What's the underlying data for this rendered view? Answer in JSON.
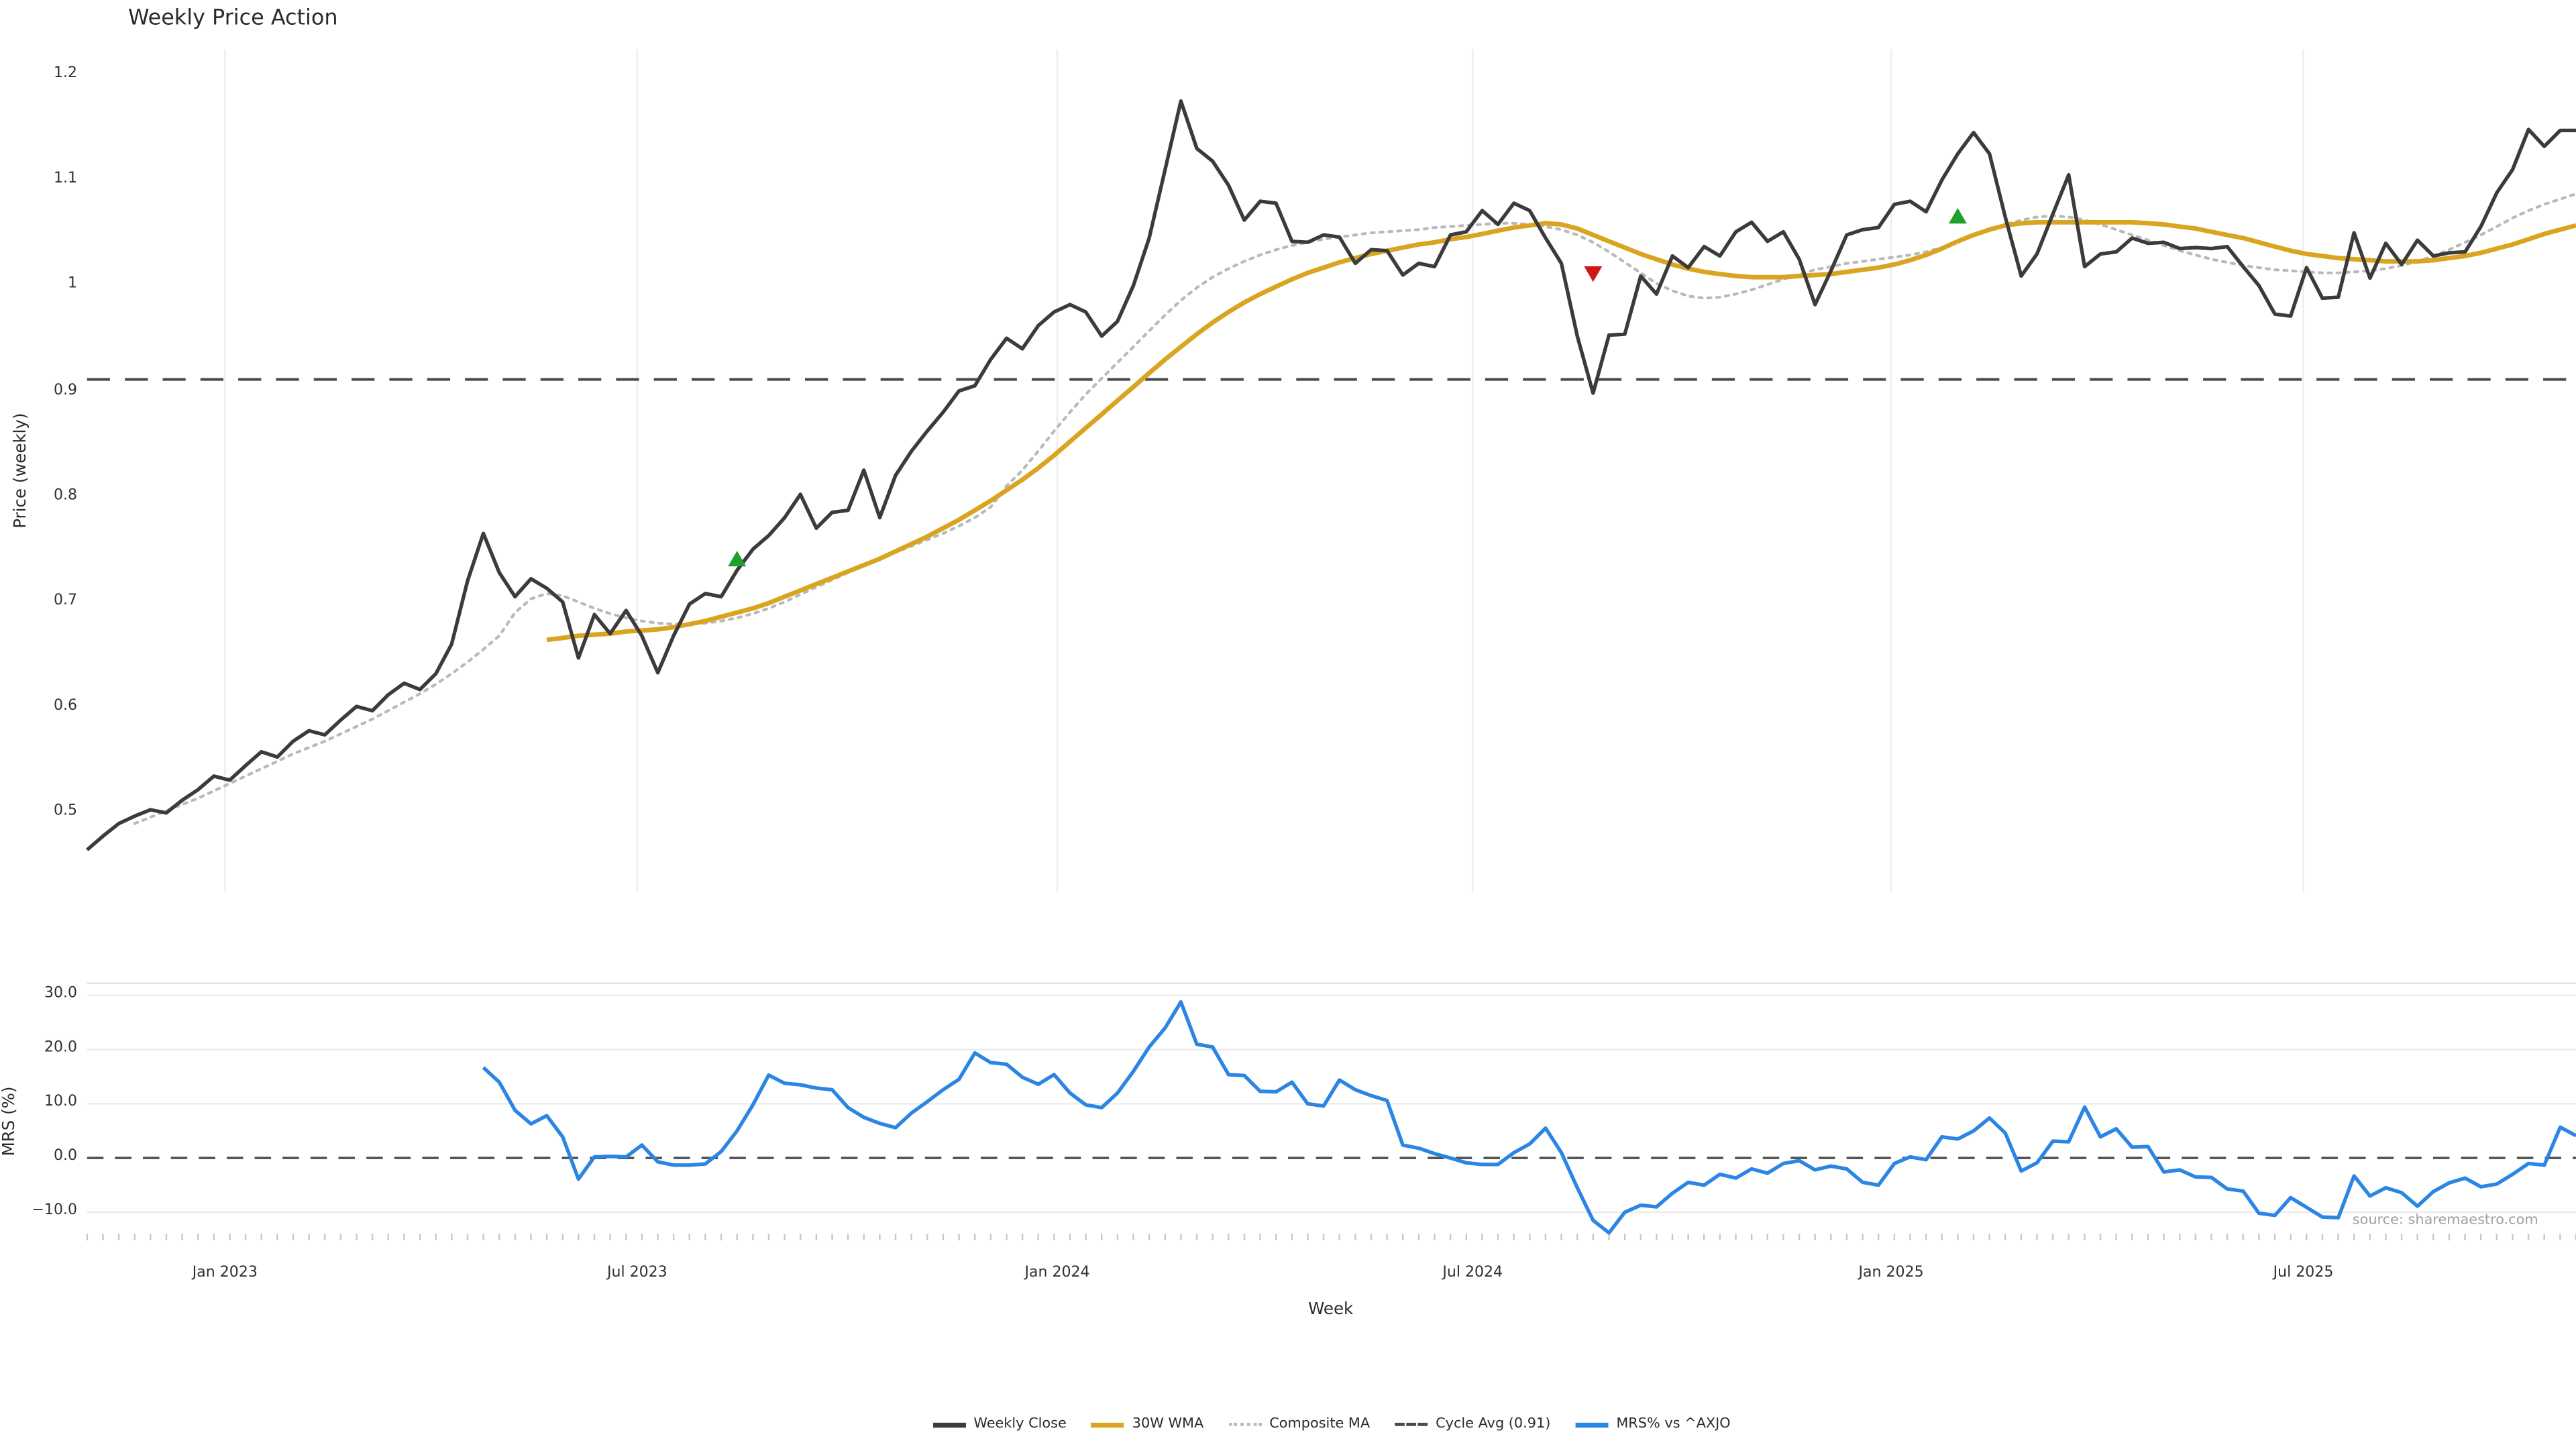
{
  "title": "Weekly Price Action",
  "source": "source: sharemaestro.com",
  "colors": {
    "weekly_close": "#3b3b3b",
    "wma_30w": "#d9a520",
    "composite_ma": "#b9b9b9",
    "cycle_avg": "#4a4a4a",
    "mrs_line": "#2b85e4",
    "buy_marker": "#1da02c",
    "sell_marker": "#cf1717",
    "grid": "#ededed",
    "tick_text": "#303030"
  },
  "x_axis": {
    "label": "Week",
    "ticks": [
      {
        "pos": 8.7,
        "label": "Jan 2023"
      },
      {
        "pos": 34.7,
        "label": "Jul 2023"
      },
      {
        "pos": 61.2,
        "label": "Jan 2024"
      },
      {
        "pos": 87.4,
        "label": "Jul 2024"
      },
      {
        "pos": 113.8,
        "label": "Jan 2025"
      },
      {
        "pos": 139.8,
        "label": "Jul 2025"
      }
    ],
    "weeks_total": 157
  },
  "legend": {
    "items": [
      {
        "label": "Weekly Close",
        "color": "#3b3b3b",
        "style": "solid",
        "thick": 3
      },
      {
        "label": "30W WMA",
        "color": "#d9a520",
        "style": "solid",
        "thick": 3
      },
      {
        "label": "Composite MA",
        "color": "#b9b9b9",
        "style": "dotted",
        "thick": 2
      },
      {
        "label": "Cycle Avg (0.91)",
        "color": "#4a4a4a",
        "style": "dashed",
        "thick": 2
      },
      {
        "label": "MRS% vs ^AXJO",
        "color": "#2b85e4",
        "style": "solid",
        "thick": 3
      }
    ]
  },
  "chart_data": [
    {
      "id": "price",
      "type": "line",
      "title": "Weekly Price Action",
      "xlabel": "Week",
      "ylabel": "Price (weekly)",
      "ylim": [
        0.425,
        1.224
      ],
      "grid_x": true,
      "yticks": [
        {
          "v": 1.2,
          "label": "1.2"
        },
        {
          "v": 1.1,
          "label": "1.1"
        },
        {
          "v": 1.0,
          "label": "1"
        },
        {
          "v": 0.9,
          "label": "0.9"
        },
        {
          "v": 0.8,
          "label": "0.8"
        },
        {
          "v": 0.7,
          "label": "0.7"
        },
        {
          "v": 0.6,
          "label": "0.6"
        },
        {
          "v": 0.5,
          "label": "0.5"
        }
      ],
      "hline": {
        "value": 0.911,
        "label": "Cycle Avg (0.91)",
        "style": "dashed",
        "color": "#4a4a4a"
      },
      "markers": [
        {
          "week": 41,
          "price": 0.74,
          "dir": "up",
          "type": "buy-signal",
          "color": "#1da02c"
        },
        {
          "week": 95,
          "price": 1.012,
          "dir": "down",
          "type": "sell-signal",
          "color": "#cf1717"
        },
        {
          "week": 118,
          "price": 1.065,
          "dir": "up",
          "type": "buy-signal",
          "color": "#1da02c"
        }
      ],
      "series": [
        {
          "name": "Weekly Close",
          "color": "#3b3b3b",
          "width": 2.2,
          "dash": null,
          "start_week": 0,
          "values": [
            0.465,
            0.478,
            0.49,
            0.497,
            0.503,
            0.5,
            0.512,
            0.522,
            0.535,
            0.531,
            0.545,
            0.558,
            0.553,
            0.568,
            0.578,
            0.574,
            0.588,
            0.601,
            0.597,
            0.612,
            0.623,
            0.617,
            0.632,
            0.66,
            0.72,
            0.765,
            0.728,
            0.705,
            0.722,
            0.713,
            0.7,
            0.647,
            0.688,
            0.67,
            0.692,
            0.668,
            0.633,
            0.668,
            0.698,
            0.708,
            0.705,
            0.73,
            0.75,
            0.763,
            0.78,
            0.802,
            0.77,
            0.785,
            0.787,
            0.825,
            0.78,
            0.82,
            0.843,
            0.862,
            0.88,
            0.9,
            0.905,
            0.93,
            0.95,
            0.94,
            0.962,
            0.975,
            0.982,
            0.975,
            0.952,
            0.966,
            1.0,
            1.045,
            1.11,
            1.175,
            1.13,
            1.118,
            1.095,
            1.062,
            1.08,
            1.078,
            1.042,
            1.041,
            1.048,
            1.046,
            1.021,
            1.034,
            1.033,
            1.01,
            1.021,
            1.018,
            1.048,
            1.051,
            1.071,
            1.058,
            1.078,
            1.071,
            1.045,
            1.021,
            0.952,
            0.898,
            0.953,
            0.954,
            1.009,
            0.992,
            1.028,
            1.017,
            1.037,
            1.028,
            1.051,
            1.06,
            1.042,
            1.051,
            1.025,
            0.982,
            1.014,
            1.048,
            1.053,
            1.055,
            1.077,
            1.08,
            1.07,
            1.1,
            1.125,
            1.145,
            1.125,
            1.065,
            1.009,
            1.03,
            1.068,
            1.105,
            1.018,
            1.03,
            1.032,
            1.045,
            1.04,
            1.041,
            1.035,
            1.036,
            1.035,
            1.037,
            1.018,
            1.0,
            0.973,
            0.971,
            1.017,
            0.988,
            0.989,
            1.05,
            1.007,
            1.04,
            1.02,
            1.043,
            1.028,
            1.031,
            1.032,
            1.056,
            1.088,
            1.11,
            1.148,
            1.132,
            1.147,
            1.147
          ]
        },
        {
          "name": "30W WMA",
          "color": "#d9a520",
          "width": 2.8,
          "dash": null,
          "start_week": 29,
          "values": [
            0.664,
            0.666,
            0.668,
            0.669,
            0.67,
            0.672,
            0.673,
            0.674,
            0.676,
            0.679,
            0.682,
            0.686,
            0.69,
            0.694,
            0.699,
            0.705,
            0.711,
            0.717,
            0.723,
            0.729,
            0.735,
            0.741,
            0.748,
            0.755,
            0.762,
            0.77,
            0.778,
            0.787,
            0.796,
            0.806,
            0.816,
            0.827,
            0.839,
            0.852,
            0.865,
            0.878,
            0.891,
            0.904,
            0.917,
            0.93,
            0.942,
            0.954,
            0.965,
            0.975,
            0.984,
            0.992,
            0.999,
            1.006,
            1.012,
            1.017,
            1.022,
            1.026,
            1.03,
            1.033,
            1.036,
            1.039,
            1.041,
            1.044,
            1.046,
            1.049,
            1.052,
            1.055,
            1.057,
            1.059,
            1.058,
            1.054,
            1.048,
            1.042,
            1.036,
            1.03,
            1.025,
            1.02,
            1.016,
            1.013,
            1.011,
            1.009,
            1.008,
            1.008,
            1.008,
            1.009,
            1.01,
            1.011,
            1.013,
            1.015,
            1.017,
            1.02,
            1.024,
            1.029,
            1.035,
            1.042,
            1.048,
            1.053,
            1.057,
            1.059,
            1.06,
            1.06,
            1.06,
            1.06,
            1.06,
            1.06,
            1.06,
            1.059,
            1.058,
            1.056,
            1.054,
            1.051,
            1.048,
            1.045,
            1.041,
            1.037,
            1.033,
            1.03,
            1.028,
            1.026,
            1.025,
            1.024,
            1.023,
            1.023,
            1.023,
            1.024,
            1.026,
            1.028,
            1.031,
            1.035,
            1.039,
            1.044,
            1.049,
            1.053,
            1.057
          ]
        },
        {
          "name": "Composite MA",
          "color": "#b9b9b9",
          "width": 1.7,
          "dash": "2 3.4",
          "start_week": 3,
          "values": [
            0.49,
            0.496,
            0.502,
            0.508,
            0.514,
            0.521,
            0.528,
            0.535,
            0.542,
            0.549,
            0.556,
            0.562,
            0.568,
            0.575,
            0.582,
            0.589,
            0.597,
            0.605,
            0.613,
            0.622,
            0.632,
            0.643,
            0.655,
            0.668,
            0.69,
            0.703,
            0.708,
            0.706,
            0.7,
            0.694,
            0.689,
            0.685,
            0.682,
            0.68,
            0.679,
            0.679,
            0.68,
            0.682,
            0.685,
            0.689,
            0.694,
            0.7,
            0.707,
            0.714,
            0.721,
            0.728,
            0.735,
            0.741,
            0.747,
            0.753,
            0.759,
            0.765,
            0.772,
            0.78,
            0.79,
            0.81,
            0.825,
            0.843,
            0.862,
            0.88,
            0.897,
            0.912,
            0.927,
            0.942,
            0.957,
            0.972,
            0.986,
            0.998,
            1.008,
            1.016,
            1.023,
            1.029,
            1.034,
            1.038,
            1.041,
            1.044,
            1.046,
            1.048,
            1.05,
            1.051,
            1.052,
            1.053,
            1.055,
            1.056,
            1.057,
            1.058,
            1.059,
            1.059,
            1.058,
            1.056,
            1.053,
            1.048,
            1.041,
            1.032,
            1.022,
            1.012,
            1.002,
            0.995,
            0.99,
            0.988,
            0.989,
            0.992,
            0.996,
            1.001,
            1.006,
            1.011,
            1.015,
            1.018,
            1.021,
            1.023,
            1.025,
            1.027,
            1.029,
            1.032,
            1.036,
            1.041,
            1.047,
            1.053,
            1.058,
            1.062,
            1.065,
            1.066,
            1.065,
            1.062,
            1.058,
            1.053,
            1.048,
            1.043,
            1.038,
            1.033,
            1.029,
            1.025,
            1.022,
            1.019,
            1.017,
            1.015,
            1.014,
            1.013,
            1.012,
            1.012,
            1.013,
            1.014,
            1.016,
            1.019,
            1.023,
            1.028,
            1.034,
            1.041,
            1.048,
            1.056,
            1.064,
            1.071,
            1.077,
            1.082,
            1.087
          ]
        }
      ]
    },
    {
      "id": "mrs",
      "type": "line",
      "ylabel": "MRS (%)",
      "ylim": [
        -15.5,
        32.4
      ],
      "grid_y": true,
      "yticks": [
        {
          "v": 30,
          "label": "30.0"
        },
        {
          "v": 20,
          "label": "20.0"
        },
        {
          "v": 10,
          "label": "10.0"
        },
        {
          "v": 0,
          "label": "0.0"
        },
        {
          "v": -10,
          "label": "−10.0"
        }
      ],
      "hline": {
        "value": 0.0,
        "style": "dashed",
        "color": "#555555"
      },
      "series": [
        {
          "name": "MRS% vs ^AXJO",
          "color": "#2b85e4",
          "width": 2.2,
          "dash": null,
          "start_week": 25,
          "values": [
            16.7,
            14.0,
            8.8,
            6.3,
            7.8,
            3.9,
            -3.9,
            0.2,
            0.3,
            0.2,
            2.4,
            -0.7,
            -1.3,
            -1.3,
            -1.1,
            1.2,
            5.0,
            9.8,
            15.3,
            13.8,
            13.5,
            12.9,
            12.6,
            9.3,
            7.5,
            6.4,
            5.6,
            8.3,
            10.4,
            12.6,
            14.5,
            19.4,
            17.6,
            17.3,
            14.9,
            13.6,
            15.4,
            12.0,
            9.8,
            9.3,
            12.0,
            16.0,
            20.5,
            24.0,
            28.8,
            21.0,
            20.5,
            15.4,
            15.2,
            12.3,
            12.2,
            14.0,
            10.0,
            9.6,
            14.4,
            12.6,
            11.5,
            10.6,
            2.4,
            1.8,
            0.8,
            0.0,
            -0.9,
            -1.2,
            -1.2,
            1.0,
            2.6,
            5.5,
            1.0,
            -5.5,
            -11.5,
            -13.8,
            -10.0,
            -8.7,
            -9.0,
            -6.5,
            -4.5,
            -5.0,
            -3.0,
            -3.7,
            -2.0,
            -2.8,
            -1.0,
            -0.5,
            -2.2,
            -1.5,
            -2.0,
            -4.5,
            -5.0,
            -1.0,
            0.2,
            -0.3,
            3.9,
            3.5,
            5.0,
            7.4,
            4.6,
            -2.4,
            -0.9,
            3.1,
            3.0,
            9.4,
            3.9,
            5.4,
            2.0,
            2.1,
            -2.6,
            -2.2,
            -3.5,
            -3.6,
            -5.7,
            -6.1,
            -10.2,
            -10.6,
            -7.3,
            -9.1,
            -10.9,
            -11.0,
            -3.3,
            -7.0,
            -5.5,
            -6.4,
            -8.9,
            -6.2,
            -4.6,
            -3.7,
            -5.3,
            -4.8,
            -3.0,
            -1.0,
            -1.3,
            5.7,
            4.1
          ]
        }
      ]
    }
  ]
}
